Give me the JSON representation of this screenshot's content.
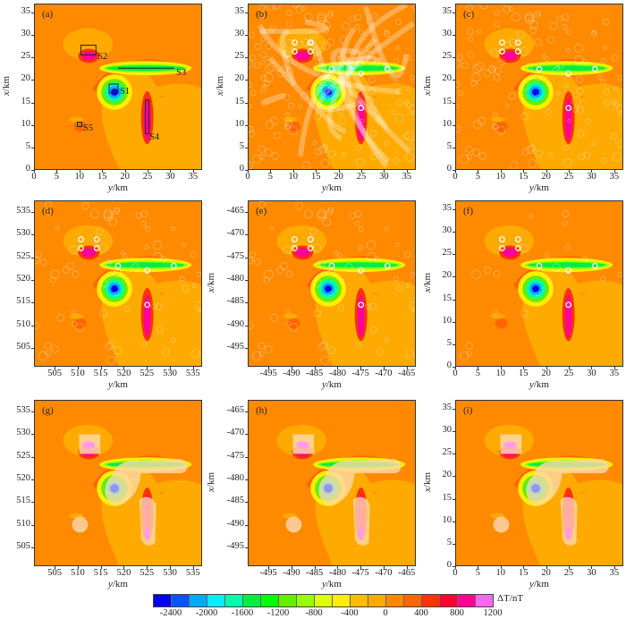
{
  "figure": {
    "panels": [
      {
        "id": "a",
        "label": "(a)",
        "x_label": "y/km",
        "y_label": "x/km",
        "x_ticks": [
          "0",
          "5",
          "10",
          "15",
          "20",
          "25",
          "30",
          "35"
        ],
        "y_ticks": [
          "35",
          "30",
          "25",
          "20",
          "15",
          "10",
          "5",
          "0"
        ],
        "variant": "model",
        "annotations": [
          "S1",
          "S2",
          "S3",
          "S4",
          "S5"
        ]
      },
      {
        "id": "b",
        "label": "(b)",
        "x_label": "y/km",
        "y_label": "x/km",
        "x_ticks": [
          "0",
          "5",
          "10",
          "15",
          "20",
          "25",
          "30",
          "35"
        ],
        "y_ticks": [
          "35",
          "30",
          "25",
          "20",
          "15",
          "10",
          "5",
          "0"
        ],
        "variant": "trails-heavy"
      },
      {
        "id": "c",
        "label": "(c)",
        "x_label": "y/km",
        "y_label": "x/km",
        "x_ticks": [
          "0",
          "5",
          "10",
          "15",
          "20",
          "25",
          "30",
          "35"
        ],
        "y_ticks": [
          "35",
          "30",
          "25",
          "20",
          "15",
          "10",
          "5",
          "0"
        ],
        "variant": "trails-medium"
      },
      {
        "id": "d",
        "label": "(d)",
        "x_label": "y/km",
        "y_label": "x/km",
        "x_ticks": [
          "505",
          "510",
          "515",
          "520",
          "525",
          "530",
          "535"
        ],
        "y_ticks": [
          "535",
          "530",
          "525",
          "520",
          "515",
          "510",
          "505"
        ],
        "variant": "trails-light"
      },
      {
        "id": "e",
        "label": "(e)",
        "x_label": "y/km",
        "y_label": "x/km",
        "x_ticks": [
          "-495",
          "-490",
          "-485",
          "-480",
          "-475",
          "-470",
          "-465"
        ],
        "y_ticks": [
          "-465",
          "-470",
          "-475",
          "-480",
          "-485",
          "-490",
          "-495"
        ],
        "variant": "trails-light"
      },
      {
        "id": "f",
        "label": "(f)",
        "x_label": "y/km",
        "y_label": "x/km",
        "x_ticks": [
          "0",
          "5",
          "10",
          "15",
          "20",
          "25",
          "30",
          "35"
        ],
        "y_ticks": [
          "35",
          "30",
          "25",
          "20",
          "15",
          "10",
          "5",
          "0"
        ],
        "variant": "trails-minimal"
      },
      {
        "id": "g",
        "label": "(g)",
        "x_label": "y/km",
        "y_label": "x/km",
        "x_ticks": [
          "505",
          "510",
          "515",
          "520",
          "525",
          "530",
          "535"
        ],
        "y_ticks": [
          "535",
          "530",
          "525",
          "520",
          "515",
          "510",
          "505"
        ],
        "variant": "masked"
      },
      {
        "id": "h",
        "label": "(h)",
        "x_label": "y/km",
        "y_label": "x/km",
        "x_ticks": [
          "-495",
          "-490",
          "-485",
          "-480",
          "-475",
          "-470",
          "-465"
        ],
        "y_ticks": [
          "-465",
          "-470",
          "-475",
          "-480",
          "-485",
          "-490",
          "-495"
        ],
        "variant": "masked"
      },
      {
        "id": "i",
        "label": "(i)",
        "x_label": "y/km",
        "y_label": "x/km",
        "x_ticks": [
          "0",
          "5",
          "10",
          "15",
          "20",
          "25",
          "30",
          "35"
        ],
        "y_ticks": [
          "35",
          "30",
          "25",
          "20",
          "15",
          "10",
          "5",
          "0"
        ],
        "variant": "masked"
      }
    ],
    "colorbar": {
      "unit_label": "ΔT/nT",
      "tick_labels": [
        "-2400",
        "-2000",
        "-1600",
        "-1200",
        "-800",
        "-400",
        "0",
        "400",
        "800",
        "1200"
      ],
      "colors": [
        "#0000ee",
        "#0055ff",
        "#00aaff",
        "#00eeff",
        "#00ffaa",
        "#00ee44",
        "#00ff00",
        "#66ee00",
        "#99ff00",
        "#ddff00",
        "#ffee00",
        "#ffbb00",
        "#ffaa00",
        "#ff8800",
        "#ff6600",
        "#ff3300",
        "#ff0033",
        "#ff0099",
        "#ff66ee",
        "#ff99ee"
      ]
    }
  },
  "chart_data": {
    "type": "heatmap",
    "title": "",
    "description": "3x3 grid of total-field magnetic anomaly (ΔT) contour maps with five sources S1–S5; panels (b)–(i) show source-position estimates overlaid",
    "xlabel": "y/km",
    "ylabel": "x/km",
    "colorbar": {
      "label": "ΔT/nT",
      "range": [
        -2600,
        1400
      ],
      "step": 200,
      "ticks": [
        -2400,
        -2000,
        -1600,
        -1200,
        -800,
        -400,
        0,
        400,
        800,
        1200
      ]
    },
    "panels": [
      {
        "id": "a",
        "xlim": [
          0,
          37
        ],
        "ylim": [
          0,
          37
        ]
      },
      {
        "id": "b",
        "xlim": [
          0,
          37
        ],
        "ylim": [
          0,
          37
        ]
      },
      {
        "id": "c",
        "xlim": [
          0,
          37
        ],
        "ylim": [
          0,
          37
        ]
      },
      {
        "id": "d",
        "xlim": [
          500.5,
          537
        ],
        "ylim": [
          500.5,
          537
        ]
      },
      {
        "id": "e",
        "xlim": [
          -499.5,
          -463
        ],
        "ylim": [
          -499.5,
          -463
        ]
      },
      {
        "id": "f",
        "xlim": [
          0,
          37
        ],
        "ylim": [
          0,
          37
        ]
      },
      {
        "id": "g",
        "xlim": [
          500.5,
          537
        ],
        "ylim": [
          500.5,
          537
        ]
      },
      {
        "id": "h",
        "xlim": [
          -499.5,
          -463
        ],
        "ylim": [
          -499.5,
          -463
        ]
      },
      {
        "id": "i",
        "xlim": [
          0,
          37
        ],
        "ylim": [
          0,
          37
        ]
      }
    ],
    "sources": [
      {
        "name": "S1",
        "type": "sphere/cube",
        "y": 17.5,
        "x": 17.5,
        "anomaly_min": -2400
      },
      {
        "name": "S2",
        "type": "prism",
        "y_range": [
          10.5,
          13.5
        ],
        "x_range": [
          25,
          27
        ],
        "anomaly_max": 1200
      },
      {
        "name": "S3",
        "type": "horizontal line",
        "y_range": [
          18.5,
          31
        ],
        "x": 22.5,
        "anomaly_min": -1200
      },
      {
        "name": "S4",
        "type": "vertical dike",
        "y": 25,
        "x_range": [
          8,
          15.5
        ],
        "anomaly_max": 1200
      },
      {
        "name": "S5",
        "type": "small prism",
        "y": 10,
        "x": 10,
        "anomaly_max": 400
      }
    ]
  }
}
